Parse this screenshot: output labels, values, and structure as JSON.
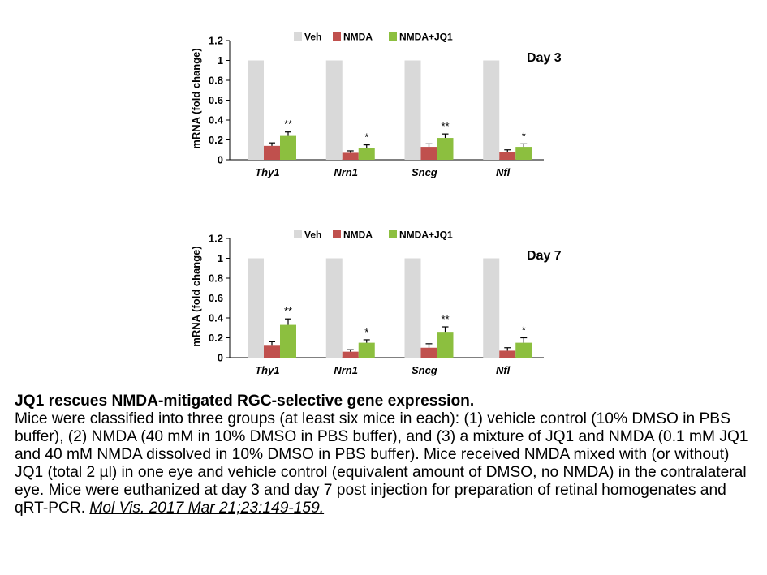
{
  "chart_data": [
    {
      "type": "bar",
      "panel_label": "Day 3",
      "ylabel": "mRNA (fold change)",
      "ylim": [
        0,
        1.2
      ],
      "yticks": [
        "0",
        "0.2",
        "0.4",
        "0.6",
        "0.8",
        "1",
        "1.2"
      ],
      "categories": [
        "Thy1",
        "Nrn1",
        "Sncg",
        "Nfl"
      ],
      "legend_position": "top",
      "series": [
        {
          "name": "Veh",
          "color": "#d9d9d9",
          "values": [
            1,
            1,
            1,
            1
          ],
          "errors": [
            0,
            0,
            0,
            0
          ]
        },
        {
          "name": "NMDA",
          "color": "#c0504d",
          "values": [
            0.14,
            0.07,
            0.13,
            0.08
          ],
          "errors": [
            0.03,
            0.02,
            0.03,
            0.02
          ]
        },
        {
          "name": "NMDA+JQ1",
          "color": "#8cbf3f",
          "values": [
            0.24,
            0.12,
            0.22,
            0.13
          ],
          "errors": [
            0.04,
            0.03,
            0.04,
            0.03
          ]
        }
      ],
      "significance": [
        "**",
        "*",
        "**",
        "*"
      ]
    },
    {
      "type": "bar",
      "panel_label": "Day 7",
      "ylabel": "mRNA (fold change)",
      "ylim": [
        0,
        1.2
      ],
      "yticks": [
        "0",
        "0.2",
        "0.4",
        "0.6",
        "0.8",
        "1",
        "1.2"
      ],
      "categories": [
        "Thy1",
        "Nrn1",
        "Sncg",
        "Nfl"
      ],
      "legend_position": "top",
      "series": [
        {
          "name": "Veh",
          "color": "#d9d9d9",
          "values": [
            1,
            1,
            1,
            1
          ],
          "errors": [
            0,
            0,
            0,
            0
          ]
        },
        {
          "name": "NMDA",
          "color": "#c0504d",
          "values": [
            0.12,
            0.06,
            0.1,
            0.07
          ],
          "errors": [
            0.04,
            0.02,
            0.04,
            0.03
          ]
        },
        {
          "name": "NMDA+JQ1",
          "color": "#8cbf3f",
          "values": [
            0.33,
            0.15,
            0.26,
            0.15
          ],
          "errors": [
            0.06,
            0.03,
            0.05,
            0.05
          ]
        }
      ],
      "significance": [
        "**",
        "*",
        "**",
        "*"
      ]
    }
  ],
  "caption": {
    "title": "JQ1 rescues NMDA-mitigated RGC-selective gene expression.",
    "body": "Mice were classified into three groups (at least six mice in each): (1) vehicle control (10% DMSO in PBS buffer), (2) NMDA (40 mM in 10% DMSO in PBS buffer), and (3) a mixture of JQ1 and NMDA (0.1 mM JQ1 and 40 mM NMDA dissolved in 10% DMSO in PBS buffer). Mice received NMDA mixed with (or without) JQ1 (total 2 µl) in one eye and vehicle control (equivalent amount of DMSO, no NMDA) in the contralateral eye. Mice were euthanized at day 3 and day 7 post injection for preparation of retinal homogenates and qRT-PCR. ",
    "citation": "Mol Vis. 2017 Mar 21;23:149-159."
  }
}
